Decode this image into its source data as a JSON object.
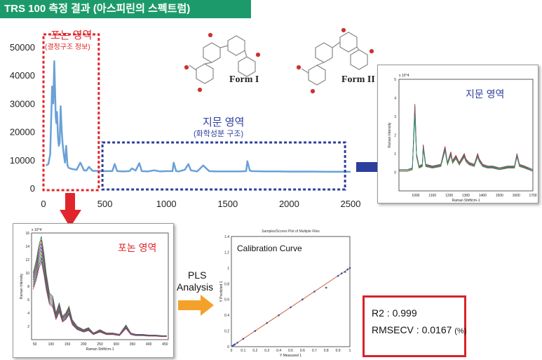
{
  "header": {
    "title": "TRS 100 측정 결과 (아스피린의 스펙트럼)"
  },
  "labels": {
    "phonon_region": "포논 영역",
    "phonon_sub": "(결정구조 정보)",
    "fingerprint_region": "지문 영역",
    "fingerprint_sub": "(화학성분 구조)",
    "form1": "Form I",
    "form2": "Form II",
    "fingerprint_inset_label": "지문 영역",
    "phonon_inset_label": "포논 영역",
    "pls_label": "PLS",
    "analysis_label": "Analysis",
    "calibration_title": "Calibration Curve",
    "r2": "R2 : 0.999",
    "rmsecv": "RMSECV : 0.0167",
    "rmsecv_unit": "(%)"
  },
  "colors": {
    "header_bg": "#1d9a6c",
    "main_spectrum": "#6aa1d6",
    "phonon_box": "#e0262b",
    "fingerprint_box": "#2c3f9e",
    "arrow_blue": "#2c3f9e",
    "arrow_red": "#e0262b",
    "arrow_orange": "#f4a12b",
    "calibration_line": "#c8643a",
    "stats_border": "#d8232a"
  },
  "chart_data": [
    {
      "type": "line",
      "title": "",
      "xlabel": "",
      "ylabel": "",
      "xlim": [
        0,
        2500
      ],
      "ylim": [
        0,
        50000
      ],
      "x_ticks": [
        0,
        500,
        1000,
        1500,
        2000,
        2500
      ],
      "y_ticks": [
        0,
        10000,
        20000,
        30000,
        40000,
        50000
      ],
      "grid": false,
      "series": [
        {
          "x": [
            20,
            40,
            55,
            70,
            80,
            88,
            95,
            100,
            105,
            110,
            118,
            125,
            132,
            140,
            148,
            155,
            165,
            175,
            185,
            195,
            205,
            215,
            240,
            270,
            300,
            330,
            350,
            370,
            400,
            430,
            470,
            520,
            560,
            580,
            600,
            650,
            700,
            720,
            750,
            780,
            800,
            850,
            900,
            950,
            1000,
            1050,
            1060,
            1080,
            1100,
            1150,
            1180,
            1200,
            1250,
            1270,
            1300,
            1350,
            1400,
            1450,
            1500,
            1550,
            1600,
            1650,
            1660,
            1680,
            1700,
            1800,
            1900,
            2000,
            2100,
            2200,
            2300,
            2400,
            2500
          ],
          "y": [
            8000,
            8500,
            12000,
            36000,
            30000,
            45000,
            34000,
            25000,
            23000,
            27000,
            18000,
            15000,
            16000,
            29000,
            21000,
            16000,
            12000,
            9000,
            15000,
            8000,
            7200,
            7000,
            6700,
            6500,
            9000,
            6300,
            6200,
            7500,
            6100,
            6100,
            6000,
            6000,
            6000,
            8500,
            6000,
            5900,
            6000,
            7000,
            6200,
            8800,
            6000,
            5900,
            6300,
            5900,
            6000,
            6000,
            9000,
            6000,
            5900,
            6500,
            8500,
            6300,
            5900,
            6700,
            8000,
            6000,
            5900,
            5900,
            5900,
            5900,
            5900,
            6000,
            9500,
            6200,
            6000,
            5900,
            5900,
            5850,
            5850,
            5850,
            5800,
            5800,
            5800
          ]
        }
      ]
    },
    {
      "type": "line",
      "title": "",
      "xlabel": "Raman Shift/cm-1",
      "ylabel": "Raman Intensity",
      "exponent": "x 10^4",
      "xlim": [
        900,
        1700
      ],
      "ylim": [
        -1,
        5
      ],
      "x_ticks": [
        1000,
        1100,
        1200,
        1300,
        1400,
        1500,
        1600,
        1700
      ],
      "y_ticks": [
        0,
        1,
        2,
        3,
        4,
        5
      ],
      "series_count": "multiple",
      "series": [
        {
          "x": [
            900,
            950,
            980,
            995,
            1005,
            1020,
            1040,
            1045,
            1060,
            1100,
            1150,
            1175,
            1190,
            1210,
            1220,
            1240,
            1260,
            1290,
            1300,
            1320,
            1350,
            1370,
            1380,
            1400,
            1430,
            1460,
            1500,
            1550,
            1590,
            1605,
            1620,
            1650,
            1700
          ],
          "y": [
            0.1,
            0.1,
            0.2,
            3.7,
            1.0,
            0.3,
            0.4,
            1.5,
            0.4,
            0.3,
            0.4,
            1.4,
            0.5,
            1.1,
            0.6,
            0.9,
            0.5,
            1.0,
            0.7,
            0.5,
            0.4,
            1.0,
            0.7,
            0.4,
            0.3,
            0.3,
            0.2,
            0.3,
            0.3,
            1.0,
            0.4,
            0.3,
            0.1
          ]
        }
      ]
    },
    {
      "type": "line",
      "title": "",
      "xlabel": "Raman Shift/cm-1",
      "ylabel": "Raman Intensity",
      "exponent": "x 10^4",
      "xlim": [
        40,
        460
      ],
      "ylim": [
        0,
        16
      ],
      "x_ticks": [
        50,
        100,
        150,
        200,
        250,
        300,
        350,
        400,
        450
      ],
      "y_ticks": [
        2,
        4,
        6,
        8,
        10,
        12,
        14,
        16
      ],
      "series_count": "multiple",
      "series": [
        {
          "x": [
            45,
            55,
            62,
            70,
            78,
            85,
            95,
            105,
            115,
            125,
            135,
            145,
            155,
            165,
            180,
            200,
            215,
            230,
            250,
            270,
            290,
            310,
            330,
            345,
            360,
            380,
            400,
            420,
            440,
            455
          ],
          "y": [
            10,
            12,
            14,
            15.5,
            13,
            10,
            7,
            6.5,
            4,
            5.5,
            3.5,
            4,
            5,
            3,
            2,
            1.5,
            1.8,
            1,
            1.5,
            1,
            1,
            0.8,
            2.2,
            1,
            0.8,
            0.8,
            0.7,
            0.7,
            0.6,
            0.6
          ]
        }
      ]
    },
    {
      "type": "scatter",
      "title": "Samples/Scores Plot of Multiple Files",
      "xlabel": "Y Measured 1",
      "ylabel": "Y Predicted 1",
      "xlim": [
        0,
        1
      ],
      "ylim": [
        0,
        1.4
      ],
      "x_ticks": [
        0,
        0.1,
        0.2,
        0.3,
        0.4,
        0.5,
        0.6,
        0.7,
        0.8,
        0.9,
        1
      ],
      "y_ticks": [
        0,
        0.2,
        0.4,
        0.6,
        0.8,
        1,
        1.2,
        1.4
      ],
      "fit_line": [
        [
          0,
          0
        ],
        [
          1,
          1
        ]
      ],
      "series": [
        {
          "x": [
            0.01,
            0.02,
            0.03,
            0.05,
            0.1,
            0.2,
            0.3,
            0.4,
            0.5,
            0.6,
            0.7,
            0.8,
            0.9,
            0.93,
            0.96,
            0.98,
            1.0
          ],
          "y": [
            0.01,
            0.02,
            0.03,
            0.05,
            0.1,
            0.2,
            0.3,
            0.4,
            0.5,
            0.6,
            0.7,
            0.75,
            0.9,
            0.93,
            0.95,
            0.98,
            1.0
          ]
        }
      ]
    }
  ]
}
